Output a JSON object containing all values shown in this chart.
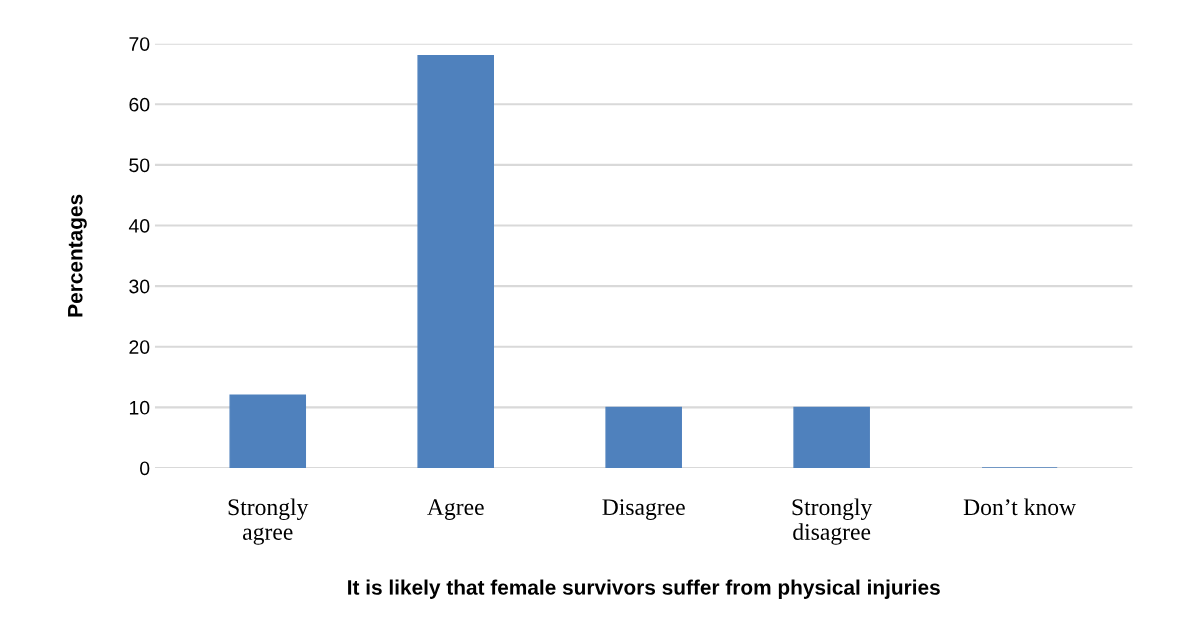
{
  "chart_data": {
    "type": "bar",
    "ylabel": "Percentages",
    "xlabel": "It is likely that female survivors suffer from physical injuries",
    "categories": [
      "Strongly\nagree",
      "Agree",
      "Disagree",
      "Strongly\ndisagree",
      "Don’t know"
    ],
    "values": [
      12,
      68,
      10,
      10,
      0
    ],
    "color": "#4f81bd",
    "ylim": [
      0,
      70
    ],
    "yticks": [
      0,
      10,
      20,
      30,
      40,
      50,
      60,
      70
    ],
    "grid": "y",
    "legend": false
  }
}
